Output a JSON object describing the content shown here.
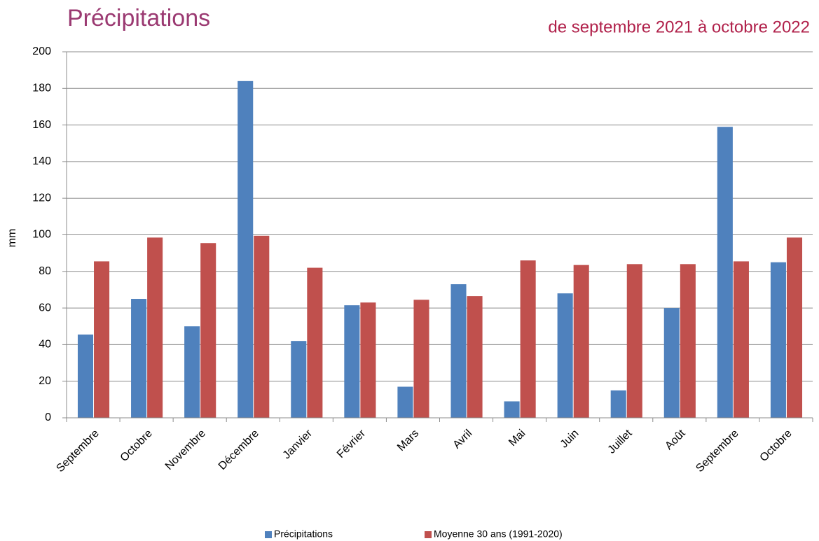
{
  "chart_data": {
    "type": "bar",
    "title": "Précipitations",
    "subtitle": "de septembre 2021 à octobre 2022",
    "y_label": "mm",
    "categories": [
      "Septembre",
      "Octobre",
      "Novembre",
      "Décembre",
      "Janvier",
      "Février",
      "Mars",
      "Avril",
      "Mai",
      "Juin",
      "Juillet",
      "Août",
      "Septembre",
      "Octobre"
    ],
    "series": [
      {
        "name": "Précipitations",
        "color": "#4f81bd",
        "values": [
          45.5,
          65,
          50,
          184,
          42,
          61.5,
          17,
          73,
          9,
          68,
          15,
          60,
          159,
          85
        ]
      },
      {
        "name": "Moyenne 30 ans (1991-2020)",
        "color": "#c0504d",
        "values": [
          85.5,
          98.5,
          95.5,
          99.5,
          82,
          63,
          64.5,
          66.5,
          86,
          83.5,
          84,
          84,
          85.5,
          98.5
        ]
      }
    ],
    "ylim": [
      0,
      200
    ],
    "yticks": [
      0,
      20,
      40,
      60,
      80,
      100,
      120,
      140,
      160,
      180,
      200
    ],
    "grid": true,
    "legend": "bottom"
  }
}
